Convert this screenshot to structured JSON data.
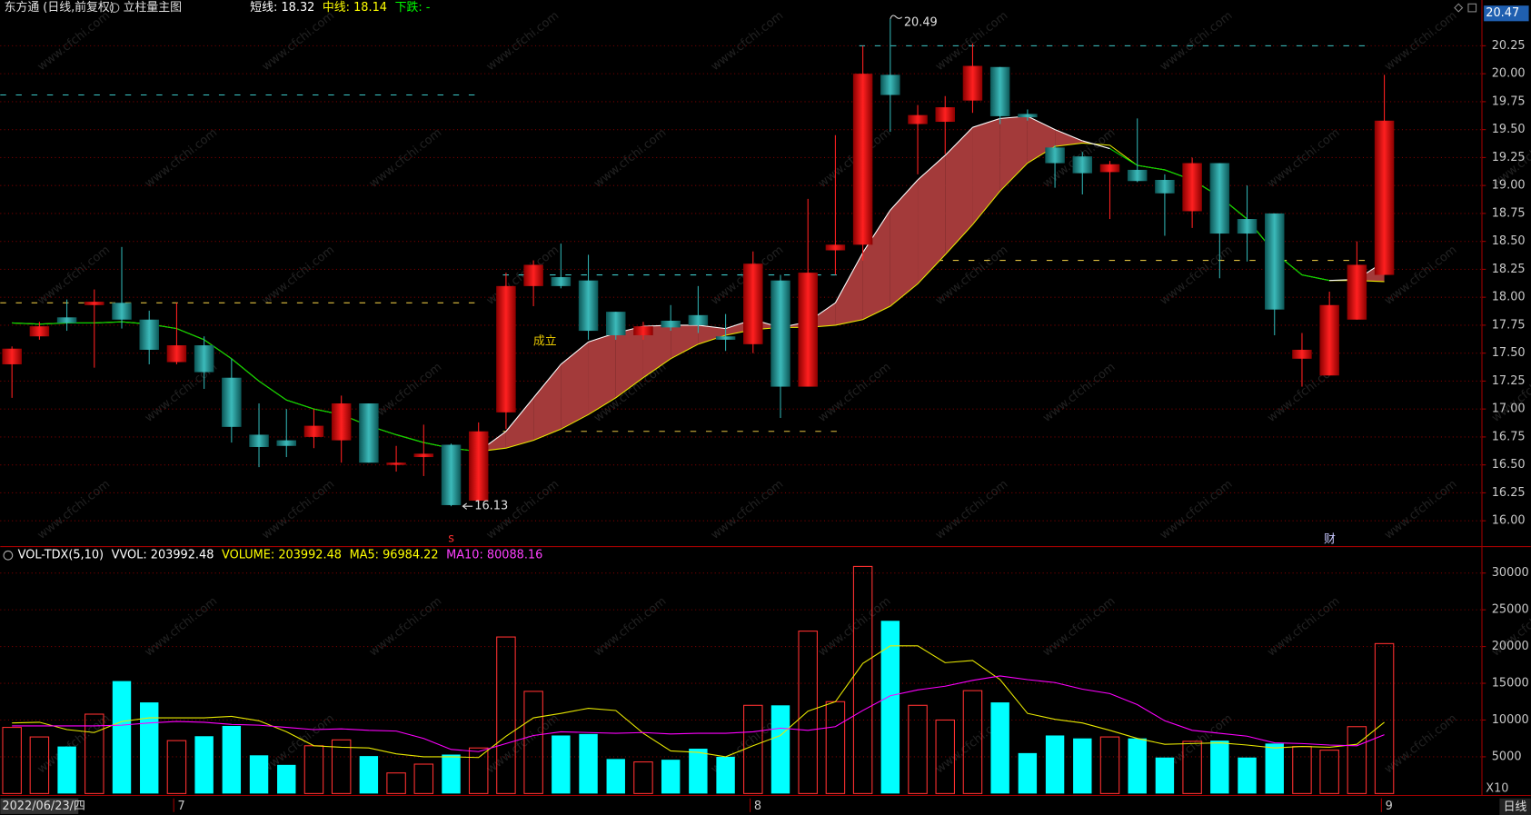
{
  "header": {
    "title": "东方通 (日线,前复权)",
    "main_chart": "立柱量主图",
    "items": [
      {
        "text": "短线: 18.32",
        "color": "#ffffff"
      },
      {
        "text": "中线: 18.14",
        "color": "#ffff00"
      },
      {
        "text": "下跌: -",
        "color": "#00ff00"
      }
    ]
  },
  "watermark": "www.cfchi.com",
  "period": "日线",
  "chart_data": [
    {
      "type": "candlestick",
      "categories": [
        "2022/06/23/四",
        null,
        null,
        null,
        null,
        null,
        "7",
        null,
        null,
        null,
        null,
        null,
        null,
        null,
        null,
        null,
        null,
        null,
        null,
        null,
        null,
        null,
        null,
        null,
        null,
        null,
        null,
        "8",
        null,
        null,
        null,
        null,
        null,
        null,
        null,
        null,
        null,
        null,
        null,
        null,
        null,
        null,
        null,
        null,
        null,
        null,
        null,
        null,
        null,
        null,
        "9"
      ],
      "open": [
        17.4,
        17.65,
        17.82,
        17.93,
        17.95,
        17.8,
        17.42,
        17.57,
        17.28,
        16.77,
        16.72,
        16.75,
        16.72,
        17.05,
        16.5,
        16.57,
        16.68,
        16.18,
        16.97,
        18.1,
        18.18,
        18.15,
        17.87,
        17.66,
        17.79,
        17.84,
        17.65,
        17.58,
        18.15,
        17.2,
        18.42,
        18.47,
        19.99,
        19.55,
        19.57,
        19.76,
        20.06,
        19.64,
        19.34,
        19.26,
        19.12,
        19.14,
        19.05,
        18.77,
        19.2,
        18.7,
        18.75,
        17.45,
        17.3,
        17.8,
        18.2
      ],
      "high": [
        17.56,
        17.78,
        17.98,
        18.07,
        18.45,
        17.88,
        17.95,
        17.65,
        17.45,
        17.05,
        17.0,
        17.0,
        17.12,
        17.05,
        16.67,
        16.86,
        16.69,
        16.88,
        18.22,
        18.33,
        18.48,
        18.38,
        17.87,
        17.78,
        17.93,
        18.1,
        17.85,
        18.41,
        18.2,
        18.88,
        19.45,
        20.25,
        20.49,
        19.72,
        19.8,
        20.27,
        20.06,
        19.68,
        19.36,
        19.3,
        19.22,
        19.6,
        19.1,
        19.25,
        19.2,
        19.0,
        18.75,
        17.68,
        18.05,
        18.5,
        19.99
      ],
      "low": [
        17.1,
        17.62,
        17.7,
        17.37,
        17.72,
        17.4,
        17.4,
        17.18,
        16.7,
        16.48,
        16.57,
        16.65,
        16.52,
        16.52,
        16.44,
        16.4,
        16.13,
        16.15,
        16.82,
        17.92,
        18.08,
        17.62,
        17.62,
        17.62,
        17.7,
        17.68,
        17.52,
        17.5,
        16.92,
        17.2,
        18.2,
        18.33,
        19.48,
        19.1,
        19.28,
        19.65,
        19.55,
        19.58,
        18.98,
        18.92,
        18.7,
        19.03,
        18.55,
        18.62,
        18.17,
        18.32,
        17.66,
        17.2,
        17.3,
        17.8,
        18.2
      ],
      "close": [
        17.54,
        17.74,
        17.77,
        17.96,
        17.8,
        17.53,
        17.57,
        17.33,
        16.84,
        16.66,
        16.67,
        16.85,
        17.05,
        16.52,
        16.52,
        16.6,
        16.14,
        16.8,
        18.1,
        18.29,
        18.1,
        17.7,
        17.66,
        17.74,
        17.73,
        17.75,
        17.62,
        18.3,
        17.2,
        18.22,
        18.47,
        20.0,
        19.81,
        19.63,
        19.7,
        20.07,
        19.62,
        19.61,
        19.2,
        19.11,
        19.19,
        19.04,
        18.93,
        19.2,
        18.57,
        18.57,
        17.89,
        17.53,
        17.93,
        18.29,
        19.58
      ],
      "up_color": "#ff2020",
      "down_color": "#2fb0b0",
      "series": [
        {
          "color": "#ffffff",
          "values": [
            17.77,
            17.76,
            17.77,
            17.77,
            17.78,
            17.76,
            17.72,
            17.62,
            17.45,
            17.25,
            17.08,
            17.0,
            16.95,
            16.85,
            16.77,
            16.7,
            16.65,
            16.62,
            16.8,
            17.1,
            17.4,
            17.6,
            17.68,
            17.74,
            17.75,
            17.75,
            17.72,
            17.8,
            17.73,
            17.78,
            17.95,
            18.4,
            18.78,
            19.05,
            19.27,
            19.52,
            19.6,
            19.62,
            19.5,
            19.4,
            19.33,
            19.18,
            19.14,
            19.05,
            18.9,
            18.7,
            18.4,
            18.2,
            18.15,
            18.16,
            18.32
          ]
        },
        {
          "color": "#e8e800",
          "values": [
            17.77,
            17.76,
            17.77,
            17.77,
            17.78,
            17.76,
            17.72,
            17.62,
            17.45,
            17.25,
            17.08,
            17.0,
            16.95,
            16.85,
            16.77,
            16.7,
            16.65,
            16.62,
            16.65,
            16.72,
            16.82,
            16.95,
            17.1,
            17.28,
            17.45,
            17.58,
            17.66,
            17.71,
            17.73,
            17.73,
            17.75,
            17.8,
            17.92,
            18.12,
            18.38,
            18.65,
            18.95,
            19.2,
            19.35,
            19.38,
            19.36,
            19.18,
            19.14,
            19.05,
            18.9,
            18.7,
            18.4,
            18.2,
            18.15,
            18.15,
            18.14
          ]
        }
      ],
      "fall_color": "#00d800",
      "ribbon_color": "#a33a3a",
      "levels": [
        {
          "value": 19.81,
          "color": "#3cc8c8"
        },
        {
          "value": 17.95,
          "color": "#e0c040"
        },
        {
          "value": 18.2,
          "color": "#3cc8c8"
        },
        {
          "value": 16.8,
          "color": "#e0c040"
        },
        {
          "value": 20.25,
          "color": "#3cc8c8"
        },
        {
          "value": 18.33,
          "color": "#e0c040"
        }
      ],
      "annotations": [
        {
          "text": "成立",
          "color": "#e8c800"
        },
        {
          "text": "s",
          "color": "#ff3030"
        },
        {
          "text": "财",
          "color": "#c8c8ff"
        }
      ],
      "last_price": 20.47,
      "ylim": [
        15.9,
        20.52
      ],
      "yticks": [
        {
          "value": 16,
          "label": "16.00"
        },
        {
          "value": 16.25,
          "label": "16.25"
        },
        {
          "value": 16.5,
          "label": "16.50"
        },
        {
          "value": 16.75,
          "label": "16.75"
        },
        {
          "value": 17,
          "label": "17.00"
        },
        {
          "value": 17.25,
          "label": "17.25"
        },
        {
          "value": 17.5,
          "label": "17.50"
        },
        {
          "value": 17.75,
          "label": "17.75"
        },
        {
          "value": 18,
          "label": "18.00"
        },
        {
          "value": 18.25,
          "label": "18.25"
        },
        {
          "value": 18.5,
          "label": "18.50"
        },
        {
          "value": 18.75,
          "label": "18.75"
        },
        {
          "value": 19,
          "label": "19.00"
        },
        {
          "value": 19.25,
          "label": "19.25"
        },
        {
          "value": 19.5,
          "label": "19.50"
        },
        {
          "value": 19.75,
          "label": "19.75"
        },
        {
          "value": 20,
          "label": "20.00"
        },
        {
          "value": 20.25,
          "label": "20.25"
        }
      ],
      "grid": true
    },
    {
      "type": "bar",
      "header": [
        {
          "text": "VOL-TDX(5,10)",
          "color": "#ffffff"
        },
        {
          "text": "VVOL: 203992.48",
          "color": "#ffffff"
        },
        {
          "text": "VOLUME: 203992.48",
          "color": "#ffff00"
        },
        {
          "text": "MA5: 96984.22",
          "color": "#ffff00"
        },
        {
          "text": "MA10: 80088.16",
          "color": "#ff40ff"
        }
      ],
      "values": [
        9000,
        7700,
        6400,
        10800,
        15300,
        12400,
        7200,
        7800,
        9200,
        5200,
        3900,
        6500,
        7300,
        5100,
        2800,
        4000,
        5300,
        6200,
        21300,
        13900,
        7900,
        8100,
        4700,
        4300,
        4600,
        6100,
        5000,
        12000,
        12000,
        22100,
        12500,
        30900,
        23500,
        12000,
        10000,
        14000,
        12400,
        5500,
        7900,
        7500,
        7700,
        7500,
        4900,
        7100,
        7200,
        4900,
        6800,
        6400,
        5900,
        9100,
        20400
      ],
      "up_color": "#ff3030",
      "down_color": "#00ffff",
      "lines": [
        {
          "color": "#e8e800",
          "values": [
            9600,
            9700,
            8700,
            8300,
            9800,
            10300,
            10300,
            10300,
            10500,
            9900,
            8400,
            6500,
            6300,
            6200,
            5400,
            5000,
            5000,
            4900,
            7800,
            10300,
            10900,
            11600,
            11300,
            8200,
            5800,
            5600,
            5000,
            6500,
            7900,
            11200,
            12500,
            17700,
            20100,
            20100,
            17800,
            18100,
            15500,
            10900,
            10100,
            9600,
            8600,
            7500,
            6700,
            6800,
            6900,
            6600,
            6200,
            6400,
            6300,
            6700,
            9698
          ]
        },
        {
          "color": "#ff00ff",
          "values": [
            9200,
            9200,
            9200,
            9200,
            9300,
            9600,
            9800,
            9700,
            9400,
            9300,
            9000,
            8700,
            8800,
            8600,
            8500,
            7500,
            6000,
            5700,
            6800,
            7900,
            8400,
            8300,
            8200,
            8300,
            8100,
            8200,
            8200,
            8400,
            8900,
            8600,
            9100,
            11300,
            13300,
            14100,
            14600,
            15400,
            16000,
            15500,
            15100,
            14200,
            13600,
            12100,
            9900,
            8600,
            8200,
            7800,
            6900,
            6800,
            6600,
            6500,
            8009
          ]
        }
      ],
      "unit_label": "X10",
      "ylim": [
        0,
        33600
      ],
      "yticks": [
        5000,
        10000,
        15000,
        20000,
        25000,
        30000
      ],
      "grid": true
    }
  ]
}
